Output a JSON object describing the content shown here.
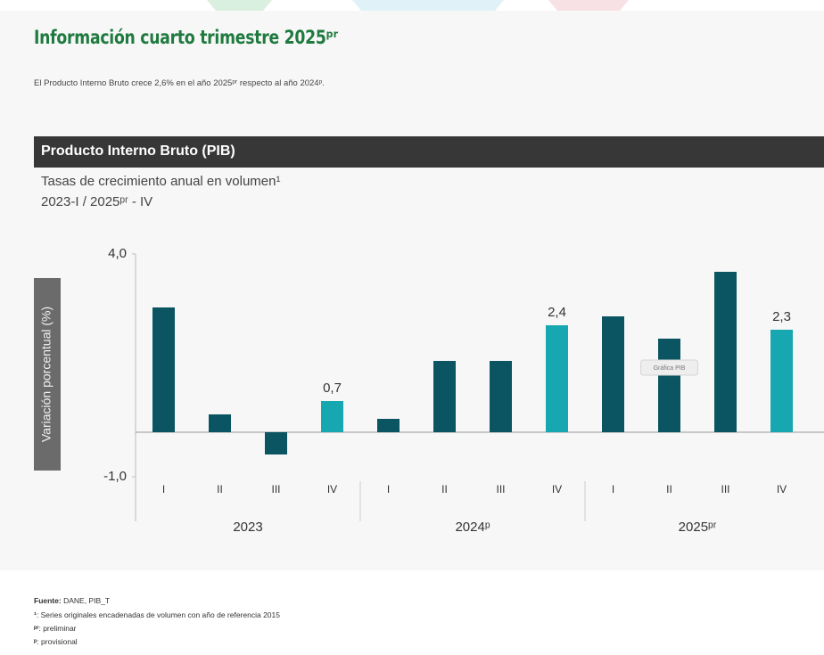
{
  "page": {
    "title": "Información cuarto trimestre 2025ᵖʳ",
    "lead": "El Producto Interno Bruto crece 2,6% en el año 2025ᵖʳ respecto al año 2024ᵖ.",
    "tooltip": "Gráfica PIB",
    "source_label": "Fuente:",
    "source_text": "DANE, PIB_T",
    "notes": [
      {
        "mark": "¹",
        "text": ": Series originales encadenadas de volumen con año de referencia 2015"
      },
      {
        "mark": "ᵖʳ",
        "text": ": preliminar"
      },
      {
        "mark": "ᵖ",
        "text": ": provisional"
      }
    ]
  },
  "chart_data": {
    "type": "bar",
    "title": "Producto Interno Bruto (PIB)",
    "subtitle": [
      "Tasas de crecimiento anual en volumen¹",
      "2023-I / 2025ᵖʳ - IV"
    ],
    "ylabel": "Variación porcentual (%)",
    "categories": [
      "I",
      "II",
      "III",
      "IV",
      "I",
      "II",
      "III",
      "IV",
      "I",
      "II",
      "III",
      "IV"
    ],
    "groups": [
      "2023",
      "2024ᵖ",
      "2025ᵖʳ"
    ],
    "values": [
      2.8,
      0.4,
      -0.5,
      0.7,
      0.3,
      1.6,
      1.6,
      2.4,
      2.6,
      2.1,
      3.6,
      2.3
    ],
    "value_labels": [
      null,
      null,
      null,
      "0,7",
      null,
      null,
      null,
      "2,4",
      null,
      null,
      null,
      "2,3"
    ],
    "colors": [
      "#0b5563",
      "#0b5563",
      "#0b5563",
      "#17a7b1",
      "#0b5563",
      "#0b5563",
      "#0b5563",
      "#17a7b1",
      "#0b5563",
      "#0b5563",
      "#0b5563",
      "#17a7b1"
    ],
    "ylim": [
      -1,
      4
    ],
    "yticks": [
      {
        "value": -1,
        "label": "-1,0"
      },
      {
        "value": 4,
        "label": "4,0"
      }
    ],
    "grid": false
  }
}
